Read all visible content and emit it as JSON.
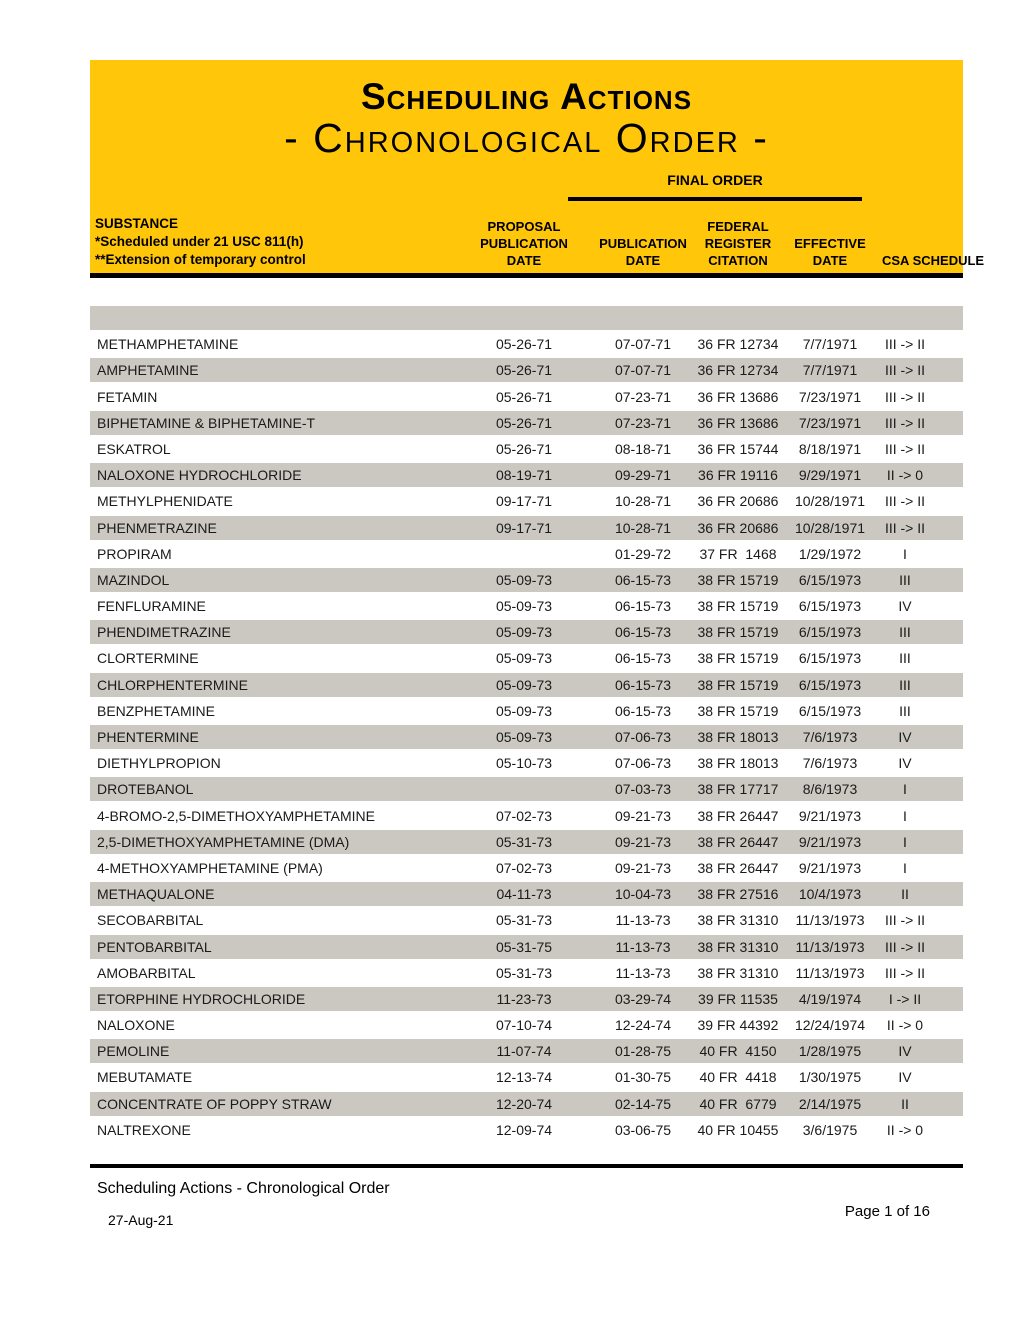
{
  "colors": {
    "masthead_yellow": "#FFC60A",
    "row_shade_gray": "#CBC8C1",
    "rule_black": "#000000"
  },
  "header": {
    "title_line1": "Scheduling Actions",
    "title_line2": "- Chronological Order -",
    "final_order_label": "FINAL ORDER",
    "columns": {
      "substance": "SUBSTANCE\n*Scheduled under 21 USC 811(h)\n**Extension of temporary control",
      "proposal_publication_date": "PROPOSAL\nPUBLICATION\nDATE",
      "publication_date": "PUBLICATION\nDATE",
      "federal_register_citation": "FEDERAL\nREGISTER\nCITATION",
      "effective_date": "EFFECTIVE\nDATE",
      "csa_schedule": "CSA\nSCHEDULE"
    }
  },
  "table": {
    "rows": [
      {
        "substance": "METHAMPHETAMINE",
        "proposal": "05-26-71",
        "publication": "07-07-71",
        "citation": "36 FR 12734",
        "effective": "7/7/1971",
        "schedule": "III -> II"
      },
      {
        "substance": "AMPHETAMINE",
        "proposal": "05-26-71",
        "publication": "07-07-71",
        "citation": "36 FR 12734",
        "effective": "7/7/1971",
        "schedule": "III -> II"
      },
      {
        "substance": "FETAMIN",
        "proposal": "05-26-71",
        "publication": "07-23-71",
        "citation": "36 FR 13686",
        "effective": "7/23/1971",
        "schedule": "III -> II"
      },
      {
        "substance": "BIPHETAMINE & BIPHETAMINE-T",
        "proposal": "05-26-71",
        "publication": "07-23-71",
        "citation": "36 FR 13686",
        "effective": "7/23/1971",
        "schedule": "III -> II"
      },
      {
        "substance": "ESKATROL",
        "proposal": "05-26-71",
        "publication": "08-18-71",
        "citation": "36 FR 15744",
        "effective": "8/18/1971",
        "schedule": "III -> II"
      },
      {
        "substance": "NALOXONE HYDROCHLORIDE",
        "proposal": "08-19-71",
        "publication": "09-29-71",
        "citation": "36 FR 19116",
        "effective": "9/29/1971",
        "schedule": "II -> 0"
      },
      {
        "substance": "METHYLPHENIDATE",
        "proposal": "09-17-71",
        "publication": "10-28-71",
        "citation": "36 FR 20686",
        "effective": "10/28/1971",
        "schedule": "III -> II"
      },
      {
        "substance": "PHENMETRAZINE",
        "proposal": "09-17-71",
        "publication": "10-28-71",
        "citation": "36 FR 20686",
        "effective": "10/28/1971",
        "schedule": "III -> II"
      },
      {
        "substance": "PROPIRAM",
        "proposal": "",
        "publication": "01-29-72",
        "citation": "37 FR  1468",
        "effective": "1/29/1972",
        "schedule": "I"
      },
      {
        "substance": "MAZINDOL",
        "proposal": "05-09-73",
        "publication": "06-15-73",
        "citation": "38 FR 15719",
        "effective": "6/15/1973",
        "schedule": "III"
      },
      {
        "substance": "FENFLURAMINE",
        "proposal": "05-09-73",
        "publication": "06-15-73",
        "citation": "38 FR 15719",
        "effective": "6/15/1973",
        "schedule": "IV"
      },
      {
        "substance": "PHENDIMETRAZINE",
        "proposal": "05-09-73",
        "publication": "06-15-73",
        "citation": "38 FR 15719",
        "effective": "6/15/1973",
        "schedule": "III"
      },
      {
        "substance": "CLORTERMINE",
        "proposal": "05-09-73",
        "publication": "06-15-73",
        "citation": "38 FR 15719",
        "effective": "6/15/1973",
        "schedule": "III"
      },
      {
        "substance": "CHLORPHENTERMINE",
        "proposal": "05-09-73",
        "publication": "06-15-73",
        "citation": "38 FR 15719",
        "effective": "6/15/1973",
        "schedule": "III"
      },
      {
        "substance": "BENZPHETAMINE",
        "proposal": "05-09-73",
        "publication": "06-15-73",
        "citation": "38 FR 15719",
        "effective": "6/15/1973",
        "schedule": "III"
      },
      {
        "substance": "PHENTERMINE",
        "proposal": "05-09-73",
        "publication": "07-06-73",
        "citation": "38 FR 18013",
        "effective": "7/6/1973",
        "schedule": "IV"
      },
      {
        "substance": "DIETHYLPROPION",
        "proposal": "05-10-73",
        "publication": "07-06-73",
        "citation": "38 FR 18013",
        "effective": "7/6/1973",
        "schedule": "IV"
      },
      {
        "substance": "DROTEBANOL",
        "proposal": "",
        "publication": "07-03-73",
        "citation": "38 FR 17717",
        "effective": "8/6/1973",
        "schedule": "I"
      },
      {
        "substance": "4-BROMO-2,5-DIMETHOXYAMPHETAMINE",
        "proposal": "07-02-73",
        "publication": "09-21-73",
        "citation": "38 FR 26447",
        "effective": "9/21/1973",
        "schedule": "I"
      },
      {
        "substance": "2,5-DIMETHOXYAMPHETAMINE (DMA)",
        "proposal": "05-31-73",
        "publication": "09-21-73",
        "citation": "38 FR 26447",
        "effective": "9/21/1973",
        "schedule": "I"
      },
      {
        "substance": "4-METHOXYAMPHETAMINE (PMA)",
        "proposal": "07-02-73",
        "publication": "09-21-73",
        "citation": "38 FR 26447",
        "effective": "9/21/1973",
        "schedule": "I"
      },
      {
        "substance": "METHAQUALONE",
        "proposal": "04-11-73",
        "publication": "10-04-73",
        "citation": "38 FR 27516",
        "effective": "10/4/1973",
        "schedule": "II"
      },
      {
        "substance": "SECOBARBITAL",
        "proposal": "05-31-73",
        "publication": "11-13-73",
        "citation": "38 FR 31310",
        "effective": "11/13/1973",
        "schedule": "III -> II"
      },
      {
        "substance": "PENTOBARBITAL",
        "proposal": "05-31-75",
        "publication": "11-13-73",
        "citation": "38 FR 31310",
        "effective": "11/13/1973",
        "schedule": "III -> II"
      },
      {
        "substance": "AMOBARBITAL",
        "proposal": "05-31-73",
        "publication": "11-13-73",
        "citation": "38 FR 31310",
        "effective": "11/13/1973",
        "schedule": "III -> II"
      },
      {
        "substance": "ETORPHINE HYDROCHLORIDE",
        "proposal": "11-23-73",
        "publication": "03-29-74",
        "citation": "39 FR 11535",
        "effective": "4/19/1974",
        "schedule": "I -> II"
      },
      {
        "substance": "NALOXONE",
        "proposal": "07-10-74",
        "publication": "12-24-74",
        "citation": "39 FR 44392",
        "effective": "12/24/1974",
        "schedule": "II -> 0"
      },
      {
        "substance": "PEMOLINE",
        "proposal": "11-07-74",
        "publication": "01-28-75",
        "citation": "40 FR  4150",
        "effective": "1/28/1975",
        "schedule": "IV"
      },
      {
        "substance": "MEBUTAMATE",
        "proposal": "12-13-74",
        "publication": "01-30-75",
        "citation": "40 FR  4418",
        "effective": "1/30/1975",
        "schedule": "IV"
      },
      {
        "substance": "CONCENTRATE OF POPPY STRAW",
        "proposal": "12-20-74",
        "publication": "02-14-75",
        "citation": "40 FR  6779",
        "effective": "2/14/1975",
        "schedule": "II"
      },
      {
        "substance": "NALTREXONE",
        "proposal": "12-09-74",
        "publication": "03-06-75",
        "citation": "40 FR 10455",
        "effective": "3/6/1975",
        "schedule": "II -> 0"
      }
    ]
  },
  "footer": {
    "document_title": "Scheduling Actions - Chronological Order",
    "date": "27-Aug-21",
    "page_indicator": "Page 1 of 16"
  }
}
